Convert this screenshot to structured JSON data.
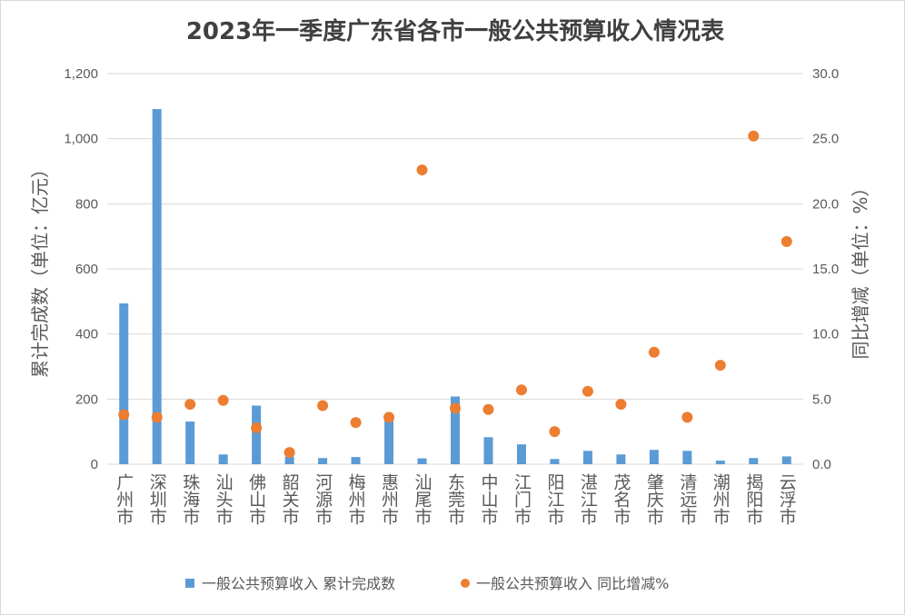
{
  "chart_data": {
    "type": "bar",
    "title": "2023年一季度广东省各市一般公共预算收入情况表",
    "categories": [
      "广州市",
      "深圳市",
      "珠海市",
      "汕头市",
      "佛山市",
      "韶关市",
      "河源市",
      "梅州市",
      "惠州市",
      "汕尾市",
      "东莞市",
      "中山市",
      "江门市",
      "阳江市",
      "湛江市",
      "茂名市",
      "肇庆市",
      "清远市",
      "潮州市",
      "揭阳市",
      "云浮市"
    ],
    "series": [
      {
        "name": "一般公共预算收入 累计完成数",
        "type": "bar",
        "axis": "left",
        "color": "#5b9bd5",
        "values": [
          494,
          1091,
          131,
          30,
          180,
          23,
          19,
          22,
          136,
          18,
          208,
          83,
          61,
          16,
          41,
          30,
          44,
          41,
          11,
          19,
          24
        ]
      },
      {
        "name": "一般公共预算收入 同比增减%",
        "type": "scatter",
        "axis": "right",
        "color": "#ed7d31",
        "values": [
          3.8,
          3.6,
          4.6,
          4.9,
          2.8,
          0.9,
          4.5,
          3.2,
          3.6,
          22.6,
          4.3,
          4.2,
          5.7,
          2.5,
          5.6,
          4.6,
          8.6,
          3.6,
          7.6,
          25.2,
          17.1
        ]
      }
    ],
    "ylabel": "累计完成数（单位：亿元）",
    "y2label": "同比增减（单位：%）",
    "ylim": [
      0,
      1200
    ],
    "y2lim": [
      0,
      30
    ],
    "yticks": [
      "0",
      "200",
      "400",
      "600",
      "800",
      "1,000",
      "1,200"
    ],
    "y2ticks": [
      "0.0",
      "5.0",
      "10.0",
      "15.0",
      "20.0",
      "25.0",
      "30.0"
    ],
    "grid": true,
    "legend_position": "bottom"
  }
}
